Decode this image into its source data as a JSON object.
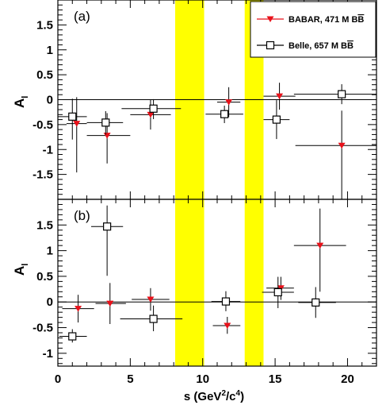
{
  "chart_data": {
    "type": "scatter",
    "xlabel_main": "s (GeV",
    "xlabel_sup1": "2",
    "xlabel_mid": "/c",
    "xlabel_sup2": "4",
    "xlabel_end": ")",
    "xlim": [
      0,
      22
    ],
    "x_ticks": [
      "0",
      "5",
      "10",
      "15",
      "20"
    ],
    "vetoed_regions": [
      [
        8.1,
        10.1
      ],
      [
        12.9,
        14.2
      ]
    ],
    "band_color": "#ffff00",
    "legend": [
      {
        "label": "BABAR, 471 M B",
        "bar_suffix": "B",
        "marker": "filled-triangle-down",
        "color": "#e8111a"
      },
      {
        "label": "Belle, 657 M B",
        "bar_suffix": "B",
        "marker": "open-square",
        "color": "#000000"
      }
    ],
    "panels": [
      {
        "tag": "(a)",
        "ylabel": "A",
        "ylabel_sub": "l",
        "ylim": [
          -2,
          2
        ],
        "y_ticks": [
          "1.5",
          "1",
          "0.5",
          "0",
          "-0.5",
          "-1",
          "-1.5"
        ],
        "series": [
          {
            "name": "BABAR, 471 M BB",
            "points": [
              {
                "x": 1.3,
                "y": -0.48,
                "xerr_lo": 0.7,
                "xerr_hi": 0.7,
                "yerr_lo": 0.98,
                "yerr_hi": 0.53
              },
              {
                "x": 3.4,
                "y": -0.72,
                "xerr_lo": 1.4,
                "xerr_hi": 1.6,
                "yerr_lo": 0.56,
                "yerr_hi": 0.45
              },
              {
                "x": 6.4,
                "y": -0.3,
                "xerr_lo": 1.4,
                "xerr_hi": 1.4,
                "yerr_lo": 0.3,
                "yerr_hi": 0.3
              },
              {
                "x": 11.8,
                "y": -0.05,
                "xerr_lo": 0.8,
                "xerr_hi": 0.8,
                "yerr_lo": 0.3,
                "yerr_hi": 0.3
              },
              {
                "x": 15.3,
                "y": 0.07,
                "xerr_lo": 1.1,
                "xerr_hi": 1.1,
                "yerr_lo": 0.27,
                "yerr_hi": 0.27
              },
              {
                "x": 19.6,
                "y": -0.92,
                "xerr_lo": 3.2,
                "xerr_hi": 2.4,
                "yerr_lo": 1.1,
                "yerr_hi": 0.7
              }
            ]
          },
          {
            "name": "Belle, 657 M BB",
            "points": [
              {
                "x": 1.0,
                "y": -0.34,
                "xerr_lo": 1.0,
                "xerr_hi": 1.0,
                "yerr_lo": 0.46,
                "yerr_hi": 0.36
              },
              {
                "x": 3.3,
                "y": -0.46,
                "xerr_lo": 1.3,
                "xerr_hi": 1.2,
                "yerr_lo": 0.24,
                "yerr_hi": 0.23
              },
              {
                "x": 6.6,
                "y": -0.18,
                "xerr_lo": 2.2,
                "xerr_hi": 1.9,
                "yerr_lo": 0.21,
                "yerr_hi": 0.19
              },
              {
                "x": 11.5,
                "y": -0.29,
                "xerr_lo": 1.3,
                "xerr_hi": 1.3,
                "yerr_lo": 0.18,
                "yerr_hi": 0.17
              },
              {
                "x": 15.1,
                "y": -0.4,
                "xerr_lo": 0.9,
                "xerr_hi": 0.9,
                "yerr_lo": 0.39,
                "yerr_hi": 0.39
              },
              {
                "x": 19.6,
                "y": 0.11,
                "xerr_lo": 3.3,
                "xerr_hi": 2.4,
                "yerr_lo": 0.2,
                "yerr_hi": 0.2
              }
            ]
          }
        ]
      },
      {
        "tag": "(b)",
        "ylabel": "A",
        "ylabel_sub": "l",
        "ylim": [
          -1.25,
          2
        ],
        "y_ticks": [
          "1.5",
          "1",
          "0.5",
          "0",
          "-0.5",
          "-1"
        ],
        "series": [
          {
            "name": "BABAR, 471 M BB",
            "points": [
              {
                "x": 1.4,
                "y": -0.13,
                "xerr_lo": 1.1,
                "xerr_hi": 1.1,
                "yerr_lo": 0.27,
                "yerr_hi": 0.27
              },
              {
                "x": 3.6,
                "y": -0.03,
                "xerr_lo": 1.0,
                "xerr_hi": 1.1,
                "yerr_lo": 0.4,
                "yerr_hi": 0.4
              },
              {
                "x": 6.4,
                "y": 0.05,
                "xerr_lo": 1.3,
                "xerr_hi": 1.3,
                "yerr_lo": 0.22,
                "yerr_hi": 0.22
              },
              {
                "x": 11.7,
                "y": -0.46,
                "xerr_lo": 1.0,
                "xerr_hi": 0.9,
                "yerr_lo": 0.16,
                "yerr_hi": 0.17
              },
              {
                "x": 15.4,
                "y": 0.27,
                "xerr_lo": 1.0,
                "xerr_hi": 0.9,
                "yerr_lo": 0.23,
                "yerr_hi": 0.22
              },
              {
                "x": 18.1,
                "y": 1.1,
                "xerr_lo": 1.8,
                "xerr_hi": 1.8,
                "yerr_lo": 0.9,
                "yerr_hi": 0.72
              }
            ]
          },
          {
            "name": "Belle, 657 M BB",
            "points": [
              {
                "x": 1.0,
                "y": -0.67,
                "xerr_lo": 0.9,
                "xerr_hi": 1.0,
                "yerr_lo": 0.12,
                "yerr_hi": 0.14
              },
              {
                "x": 3.4,
                "y": 1.47,
                "xerr_lo": 1.1,
                "xerr_hi": 1.1,
                "yerr_lo": 0.96,
                "yerr_hi": 0.41
              },
              {
                "x": 6.6,
                "y": -0.33,
                "xerr_lo": 2.3,
                "xerr_hi": 2.0,
                "yerr_lo": 0.24,
                "yerr_hi": 0.26
              },
              {
                "x": 11.6,
                "y": 0.01,
                "xerr_lo": 1.0,
                "xerr_hi": 1.0,
                "yerr_lo": 0.19,
                "yerr_hi": 0.2
              },
              {
                "x": 15.2,
                "y": 0.19,
                "xerr_lo": 1.1,
                "xerr_hi": 1.1,
                "yerr_lo": 0.31,
                "yerr_hi": 0.3
              },
              {
                "x": 17.8,
                "y": -0.01,
                "xerr_lo": 1.2,
                "xerr_hi": 1.4,
                "yerr_lo": 0.3,
                "yerr_hi": 0.3
              }
            ]
          }
        ]
      }
    ]
  }
}
